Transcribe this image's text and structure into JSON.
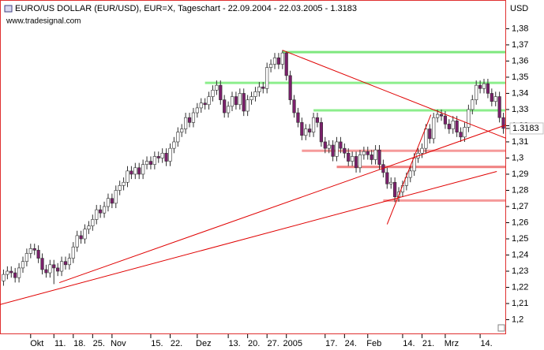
{
  "chart_data": {
    "type": "candlestick",
    "title": "EURO/US DOLLAR (EUR/USD), EUR=X, Tageschart - 22.09.2004 - 22.03.2005 - 1.3183",
    "subtitle": "www.tradesignal.com",
    "y_label": "USD",
    "categories": [
      null,
      null,
      null,
      null,
      null,
      null,
      null,
      "Okt",
      null,
      null,
      null,
      null,
      null,
      "11.",
      null,
      null,
      null,
      null,
      "18.",
      null,
      null,
      null,
      null,
      "25.",
      null,
      null,
      null,
      null,
      "Nov",
      null,
      null,
      null,
      null,
      null,
      null,
      null,
      null,
      null,
      "15.",
      null,
      null,
      null,
      null,
      "22.",
      null,
      null,
      null,
      null,
      null,
      null,
      "Dez",
      null,
      null,
      null,
      null,
      null,
      null,
      null,
      "13.",
      null,
      null,
      null,
      null,
      "20.",
      null,
      null,
      null,
      null,
      "27.",
      null,
      null,
      null,
      null,
      "2005",
      null,
      null,
      null,
      null,
      null,
      null,
      null,
      null,
      null,
      "17.",
      null,
      null,
      null,
      null,
      "24.",
      null,
      null,
      null,
      null,
      null,
      "Feb",
      null,
      null,
      null,
      null,
      null,
      null,
      null,
      null,
      "14.",
      null,
      null,
      null,
      null,
      "21.",
      null,
      null,
      null,
      null,
      null,
      "Mrz",
      null,
      null,
      null,
      null,
      null,
      null,
      null,
      null,
      "14.",
      null,
      null,
      null,
      null,
      null,
      null
    ],
    "open": [
      1.224,
      1.228,
      1.23,
      1.229,
      1.226,
      1.232,
      1.236,
      1.241,
      1.244,
      1.243,
      1.238,
      1.231,
      1.229,
      1.234,
      1.232,
      1.23,
      1.236,
      1.234,
      1.238,
      1.245,
      1.252,
      1.25,
      1.256,
      1.258,
      1.262,
      1.268,
      1.266,
      1.27,
      1.275,
      1.272,
      1.28,
      1.283,
      1.285,
      1.292,
      1.29,
      1.294,
      1.29,
      1.296,
      1.298,
      1.296,
      1.301,
      1.3,
      1.303,
      1.298,
      1.306,
      1.31,
      1.316,
      1.318,
      1.325,
      1.322,
      1.328,
      1.331,
      1.334,
      1.333,
      1.338,
      1.342,
      1.345,
      1.336,
      1.328,
      1.332,
      1.338,
      1.333,
      1.34,
      1.329,
      1.336,
      1.338,
      1.341,
      1.344,
      1.343,
      1.356,
      1.358,
      1.362,
      1.358,
      1.365,
      1.351,
      1.336,
      1.328,
      1.322,
      1.314,
      1.318,
      1.316,
      1.325,
      1.322,
      1.31,
      1.306,
      1.308,
      1.301,
      1.31,
      1.306,
      1.303,
      1.298,
      1.301,
      1.294,
      1.302,
      1.304,
      1.302,
      1.299,
      1.305,
      1.296,
      1.291,
      1.284,
      1.285,
      1.276,
      1.279,
      1.283,
      1.288,
      1.292,
      1.3,
      1.303,
      1.306,
      1.318,
      1.312,
      1.325,
      1.327,
      1.326,
      1.321,
      1.318,
      1.323,
      1.316,
      1.313,
      1.319,
      1.33,
      1.336,
      1.345,
      1.343,
      1.346,
      1.34,
      1.335,
      1.338,
      1.325
    ],
    "high": [
      1.231,
      1.233,
      1.233,
      1.232,
      1.235,
      1.239,
      1.244,
      1.247,
      1.247,
      1.246,
      1.241,
      1.234,
      1.237,
      1.237,
      1.235,
      1.239,
      1.239,
      1.241,
      1.248,
      1.255,
      1.255,
      1.259,
      1.261,
      1.265,
      1.271,
      1.271,
      1.273,
      1.278,
      1.278,
      1.283,
      1.286,
      1.288,
      1.295,
      1.295,
      1.297,
      1.297,
      1.299,
      1.301,
      1.301,
      1.304,
      1.304,
      1.306,
      1.306,
      1.309,
      1.313,
      1.319,
      1.321,
      1.328,
      1.328,
      1.331,
      1.334,
      1.337,
      1.337,
      1.341,
      1.345,
      1.348,
      1.348,
      1.339,
      1.335,
      1.341,
      1.341,
      1.343,
      1.343,
      1.339,
      1.341,
      1.344,
      1.347,
      1.347,
      1.359,
      1.361,
      1.365,
      1.365,
      1.3667,
      1.366,
      1.354,
      1.339,
      1.331,
      1.325,
      1.321,
      1.321,
      1.328,
      1.328,
      1.325,
      1.313,
      1.311,
      1.311,
      1.313,
      1.313,
      1.309,
      1.306,
      1.304,
      1.304,
      1.305,
      1.307,
      1.307,
      1.305,
      1.308,
      1.308,
      1.299,
      1.294,
      1.288,
      1.288,
      1.282,
      1.286,
      1.291,
      1.295,
      1.303,
      1.306,
      1.309,
      1.321,
      1.321,
      1.328,
      1.33,
      1.33,
      1.329,
      1.324,
      1.326,
      1.326,
      1.319,
      1.322,
      1.333,
      1.339,
      1.348,
      1.348,
      1.349,
      1.349,
      1.343,
      1.341,
      1.341,
      1.328
    ],
    "low": [
      1.221,
      1.225,
      1.226,
      1.223,
      1.223,
      1.229,
      1.233,
      1.238,
      1.24,
      1.235,
      1.228,
      1.226,
      1.226,
      1.222,
      1.227,
      1.227,
      1.231,
      1.231,
      1.235,
      1.242,
      1.247,
      1.247,
      1.253,
      1.255,
      1.259,
      1.263,
      1.263,
      1.267,
      1.269,
      1.269,
      1.277,
      1.28,
      1.282,
      1.287,
      1.287,
      1.287,
      1.287,
      1.293,
      1.293,
      1.293,
      1.297,
      1.297,
      1.295,
      1.295,
      1.303,
      1.307,
      1.313,
      1.315,
      1.319,
      1.319,
      1.325,
      1.328,
      1.33,
      1.33,
      1.335,
      1.339,
      1.333,
      1.325,
      1.325,
      1.329,
      1.33,
      1.33,
      1.326,
      1.326,
      1.333,
      1.335,
      1.338,
      1.34,
      1.34,
      1.353,
      1.355,
      1.355,
      1.355,
      1.348,
      1.333,
      1.325,
      1.319,
      1.311,
      1.311,
      1.313,
      1.313,
      1.319,
      1.307,
      1.303,
      1.303,
      1.298,
      1.298,
      1.303,
      1.3,
      1.295,
      1.295,
      1.291,
      1.291,
      1.299,
      1.299,
      1.296,
      1.296,
      1.293,
      1.288,
      1.281,
      1.281,
      1.2727,
      1.273,
      1.276,
      1.28,
      1.285,
      1.289,
      1.297,
      1.3,
      1.303,
      1.309,
      1.309,
      1.322,
      1.323,
      1.318,
      1.315,
      1.315,
      1.313,
      1.31,
      1.31,
      1.316,
      1.327,
      1.333,
      1.34,
      1.34,
      1.337,
      1.332,
      1.332,
      1.322,
      1.315
    ],
    "close": [
      1.228,
      1.23,
      1.229,
      1.226,
      1.232,
      1.236,
      1.241,
      1.244,
      1.243,
      1.238,
      1.231,
      1.229,
      1.234,
      1.232,
      1.23,
      1.236,
      1.234,
      1.238,
      1.245,
      1.252,
      1.25,
      1.256,
      1.258,
      1.262,
      1.268,
      1.266,
      1.27,
      1.275,
      1.272,
      1.28,
      1.283,
      1.285,
      1.292,
      1.29,
      1.294,
      1.29,
      1.296,
      1.298,
      1.296,
      1.301,
      1.3,
      1.303,
      1.298,
      1.306,
      1.31,
      1.316,
      1.318,
      1.325,
      1.322,
      1.328,
      1.331,
      1.334,
      1.333,
      1.338,
      1.342,
      1.345,
      1.336,
      1.328,
      1.332,
      1.338,
      1.333,
      1.34,
      1.329,
      1.336,
      1.338,
      1.341,
      1.344,
      1.343,
      1.356,
      1.358,
      1.362,
      1.358,
      1.365,
      1.351,
      1.336,
      1.328,
      1.322,
      1.314,
      1.318,
      1.316,
      1.325,
      1.322,
      1.31,
      1.306,
      1.308,
      1.301,
      1.31,
      1.306,
      1.303,
      1.298,
      1.301,
      1.294,
      1.302,
      1.304,
      1.302,
      1.299,
      1.305,
      1.296,
      1.291,
      1.284,
      1.285,
      1.276,
      1.279,
      1.283,
      1.288,
      1.292,
      1.3,
      1.303,
      1.306,
      1.318,
      1.312,
      1.325,
      1.327,
      1.326,
      1.321,
      1.318,
      1.323,
      1.316,
      1.313,
      1.319,
      1.33,
      1.336,
      1.345,
      1.343,
      1.346,
      1.34,
      1.335,
      1.338,
      1.325,
      1.3183
    ],
    "up_color": "#ffffff",
    "down_color": "#7b1f6b",
    "ylim": [
      1.191,
      1.388
    ],
    "yticks": [
      {
        "value": 1.2,
        "label": "1,2"
      },
      {
        "value": 1.21,
        "label": "1,21"
      },
      {
        "value": 1.22,
        "label": "1,22"
      },
      {
        "value": 1.23,
        "label": "1,23"
      },
      {
        "value": 1.24,
        "label": "1,24"
      },
      {
        "value": 1.25,
        "label": "1,25"
      },
      {
        "value": 1.26,
        "label": "1,26"
      },
      {
        "value": 1.27,
        "label": "1,27"
      },
      {
        "value": 1.28,
        "label": "1,28"
      },
      {
        "value": 1.29,
        "label": "1,29"
      },
      {
        "value": 1.3,
        "label": "1,3"
      },
      {
        "value": 1.31,
        "label": "1,31"
      },
      {
        "value": 1.32,
        "label": "1,32"
      },
      {
        "value": 1.33,
        "label": "1,33"
      },
      {
        "value": 1.34,
        "label": "1,34"
      },
      {
        "value": 1.35,
        "label": "1,35"
      },
      {
        "value": 1.36,
        "label": "1,36"
      },
      {
        "value": 1.37,
        "label": "1,37"
      },
      {
        "value": 1.38,
        "label": "1,38"
      }
    ],
    "hlines": [
      {
        "value": 1.3655,
        "from": 72,
        "color": "#7ee87e"
      },
      {
        "value": 1.3465,
        "from": 52,
        "color": "#8cee8c"
      },
      {
        "value": 1.3295,
        "from": 80,
        "color": "#8cee8c"
      },
      {
        "value": 1.3045,
        "from": 77,
        "color": "#f59a9a"
      },
      {
        "value": 1.2945,
        "from": 86,
        "color": "#f08080"
      },
      {
        "value": 1.2737,
        "from": 98,
        "color": "#f59a9a"
      }
    ],
    "trendlines": [
      {
        "x": [
          -1,
          127.3
        ],
        "y": [
          1.2093,
          1.2917
        ],
        "color": "#e00000"
      },
      {
        "x": [
          14.4,
          129.7
        ],
        "y": [
          1.2229,
          1.3205
        ],
        "color": "#e00000"
      },
      {
        "x": [
          72,
          129.7
        ],
        "y": [
          1.3667,
          1.3122
        ],
        "color": "#e00000"
      },
      {
        "x": [
          99,
          110.3
        ],
        "y": [
          1.259,
          1.3268
        ],
        "color": "#e00000"
      }
    ]
  }
}
